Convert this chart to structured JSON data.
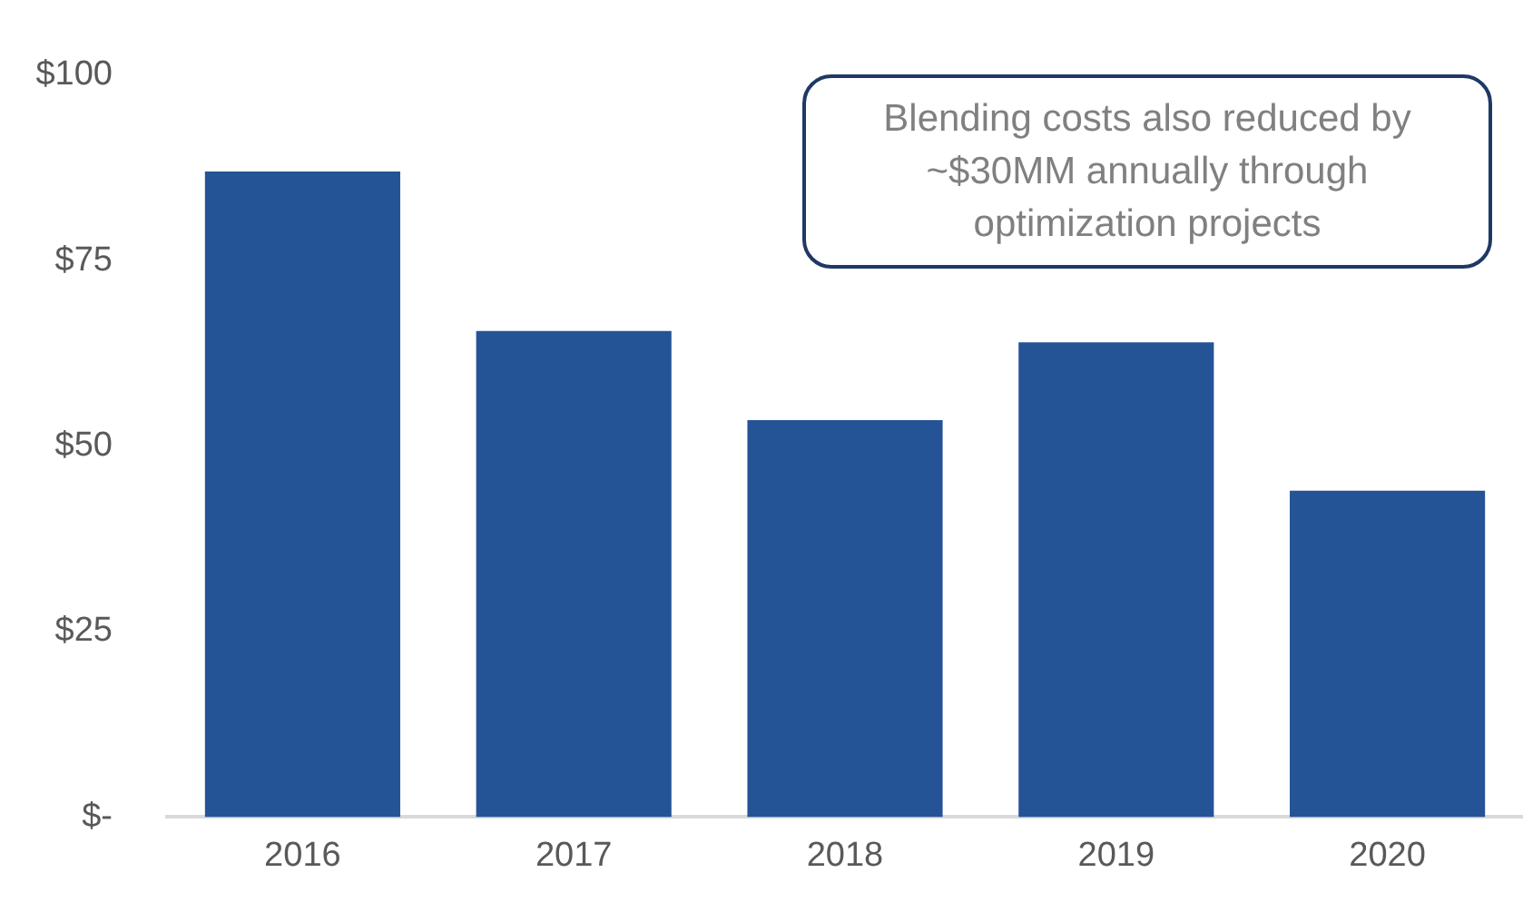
{
  "chart_data": {
    "type": "bar",
    "categories": [
      "2016",
      "2017",
      "2018",
      "2019",
      "2020"
    ],
    "values": [
      87,
      65.5,
      53.5,
      64,
      44
    ],
    "color": "#245396",
    "ylim": [
      0,
      100
    ],
    "yticks": [
      {
        "value": 0,
        "label": "$-"
      },
      {
        "value": 25,
        "label": "$25"
      },
      {
        "value": 50,
        "label": "$50"
      },
      {
        "value": 75,
        "label": "$75"
      },
      {
        "value": 100,
        "label": "$100"
      }
    ],
    "grid": false,
    "legend": false,
    "annotations": [
      "Blending costs also reduced by ~$30MM annually through optimization projects"
    ]
  }
}
